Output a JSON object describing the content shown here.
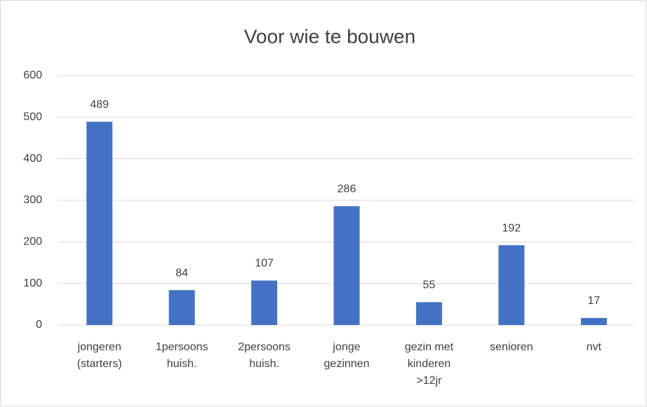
{
  "chart_data": {
    "type": "bar",
    "title": "Voor wie te bouwen",
    "categories": [
      "jongeren\n(starters)",
      "1persoons\nhuish.",
      "2persoons\nhuish.",
      "jonge\ngezinnen",
      "gezin met\nkinderen\n>12jr",
      "senioren",
      "nvt"
    ],
    "values": [
      489,
      84,
      107,
      286,
      55,
      192,
      17
    ],
    "color": "#4472c4",
    "ylim": [
      0,
      600
    ],
    "yticks": [
      0,
      100,
      200,
      300,
      400,
      500,
      600
    ],
    "grid": true
  }
}
